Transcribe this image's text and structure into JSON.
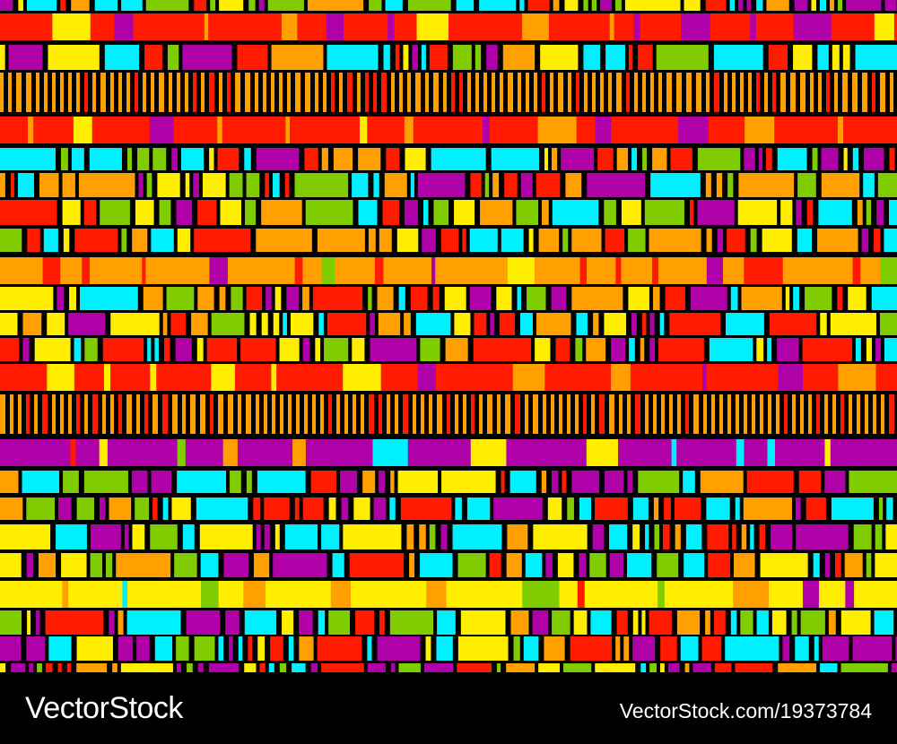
{
  "watermark": {
    "brand": "VectorStock",
    "credit": "VectorStock.com/19373784"
  },
  "palette": {
    "background": "#000000",
    "red": "#ff1a00",
    "orange": "#ff9f00",
    "yellow": "#ffee00",
    "lime": "#7fcc00",
    "cyan": "#00f0ff",
    "magenta": "#b000a8"
  },
  "image": {
    "subject": "seamless pattern of colorful rectangles in horizontal stripes",
    "style": "flat vector on black background"
  }
}
